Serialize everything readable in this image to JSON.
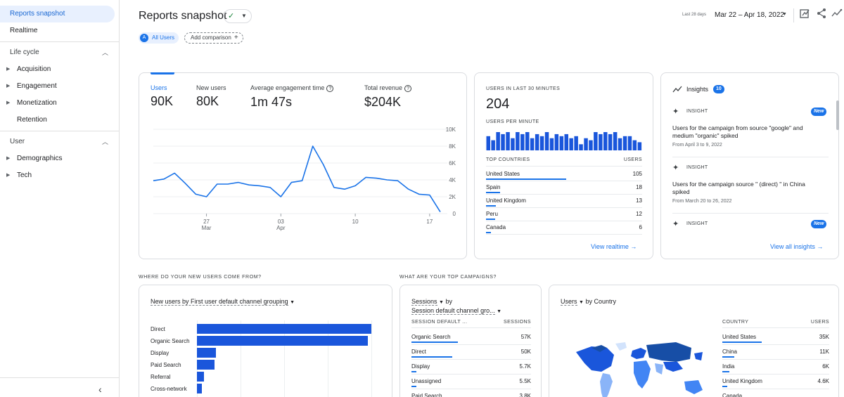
{
  "sidebar": {
    "active": "Reports snapshot",
    "realtime": "Realtime",
    "lifecycle": {
      "title": "Life cycle",
      "items": [
        "Acquisition",
        "Engagement",
        "Monetization",
        "Retention"
      ]
    },
    "user": {
      "title": "User",
      "items": [
        "Demographics",
        "Tech"
      ]
    }
  },
  "header": {
    "title": "Reports snapshot",
    "chip_all_users": "All Users",
    "chip_avatar": "A",
    "add_comparison": "Add comparison",
    "date_prefix": "Last 28 days",
    "date_range": "Mar 22 – Apr 18, 2022"
  },
  "metrics": {
    "items": [
      {
        "label": "Users",
        "value": "90K"
      },
      {
        "label": "New users",
        "value": "80K"
      },
      {
        "label": "Average engagement time",
        "value": "1m 47s"
      },
      {
        "label": "Total revenue",
        "value": "$204K"
      }
    ]
  },
  "chart_data": {
    "type": "line",
    "y_ticks": [
      "10K",
      "8K",
      "6K",
      "4K",
      "2K",
      "0"
    ],
    "ylim": [
      0,
      10000
    ],
    "x_ticks": [
      {
        "day": "27",
        "month": "Mar",
        "index": 5
      },
      {
        "day": "03",
        "month": "Apr",
        "index": 12
      },
      {
        "day": "10",
        "month": "",
        "index": 19
      },
      {
        "day": "17",
        "month": "",
        "index": 26
      }
    ],
    "series": [
      {
        "values": [
          3900,
          4100,
          4800,
          3600,
          2300,
          2000,
          3500,
          3500,
          3700,
          3400,
          3300,
          3100,
          2000,
          3700,
          3900,
          8000,
          5800,
          3100,
          2900,
          3300,
          4300,
          4200,
          4000,
          3900,
          2900,
          2300,
          2200,
          200
        ]
      }
    ]
  },
  "realtime": {
    "title": "USERS IN LAST 30 MINUTES",
    "value": "204",
    "per_minute_label": "USERS PER MINUTE",
    "per_minute": [
      7,
      5,
      9,
      8,
      9,
      6,
      9,
      8,
      9,
      6,
      8,
      7,
      9,
      6,
      8,
      7,
      8,
      6,
      7,
      3,
      6,
      5,
      9,
      8,
      9,
      8,
      9,
      6,
      7,
      7,
      5,
      4
    ],
    "countries_header": "TOP COUNTRIES",
    "users_header": "USERS",
    "countries": [
      {
        "name": "United States",
        "value": 105
      },
      {
        "name": "Spain",
        "value": 18
      },
      {
        "name": "United Kingdom",
        "value": 13
      },
      {
        "name": "Peru",
        "value": 12
      },
      {
        "name": "Canada",
        "value": 6
      }
    ],
    "link": "View realtime"
  },
  "insights": {
    "title": "Insights",
    "count": "10",
    "head": "INSIGHT",
    "new_label": "New",
    "item1": "Users for the campaign from source \"google\" and medium \"organic\" spiked",
    "item1_date": "From April 3 to 9, 2022",
    "item2": "Users for the campaign source \" (direct) \" in China spiked",
    "item2_date": "From March 20 to 26, 2022",
    "link": "View all insights"
  },
  "new_users": {
    "section": "WHERE DO YOUR NEW USERS COME FROM?",
    "dropdown": "New users by First user default channel grouping",
    "channels": [
      {
        "name": "Direct",
        "value": 100
      },
      {
        "name": "Organic Search",
        "value": 98
      },
      {
        "name": "Display",
        "value": 11
      },
      {
        "name": "Paid Search",
        "value": 10
      },
      {
        "name": "Referral",
        "value": 4
      },
      {
        "name": "Cross-network",
        "value": 3
      }
    ]
  },
  "campaigns": {
    "section": "WHAT ARE YOUR TOP CAMPAIGNS?",
    "dd1": "Sessions",
    "dd1_suffix": "by",
    "dd2": "Session default channel gro...",
    "col1": "SESSION DEFAULT ...",
    "col2": "SESSIONS",
    "rows": [
      {
        "name": "Organic Search",
        "value": "57K",
        "frac": 1.0
      },
      {
        "name": "Direct",
        "value": "50K",
        "frac": 0.88
      },
      {
        "name": "Display",
        "value": "5.7K",
        "frac": 0.1
      },
      {
        "name": "Unassigned",
        "value": "5.5K",
        "frac": 0.1
      },
      {
        "name": "Paid Search",
        "value": "3.8K",
        "frac": 0.07
      }
    ]
  },
  "country": {
    "dd1": "Users",
    "dd1_suffix": "by Country",
    "col1": "COUNTRY",
    "col2": "USERS",
    "rows": [
      {
        "name": "United States",
        "value": "35K",
        "frac": 1.0
      },
      {
        "name": "China",
        "value": "11K",
        "frac": 0.31
      },
      {
        "name": "India",
        "value": "6K",
        "frac": 0.17
      },
      {
        "name": "United Kingdom",
        "value": "4.6K",
        "frac": 0.13
      },
      {
        "name": "Canada",
        "value": "",
        "frac": 0.1
      }
    ]
  },
  "colors": {
    "accent": "#1a73e8",
    "bar": "#1a56db",
    "active_bg": "#e8f0fe"
  }
}
